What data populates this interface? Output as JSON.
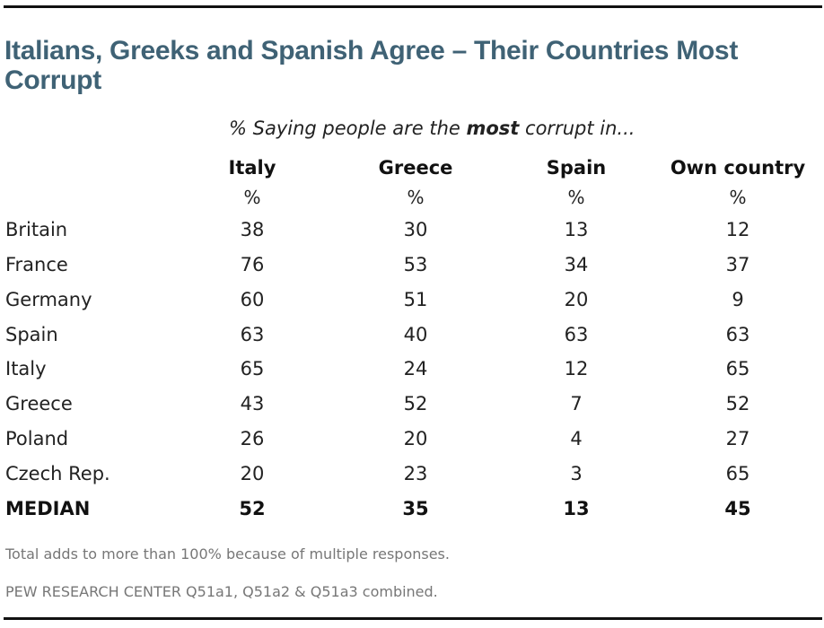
{
  "chart_data": {
    "type": "table",
    "title": "Italians, Greeks and Spanish Agree – Their Countries Most Corrupt",
    "subtitle_prefix": "% Saying people are the ",
    "subtitle_emphasis": "most",
    "subtitle_suffix": " corrupt in...",
    "columns": [
      {
        "label": "Italy",
        "unit": "%"
      },
      {
        "label": "Greece",
        "unit": "%"
      },
      {
        "label": "Spain",
        "unit": "%"
      },
      {
        "label": "Own country",
        "unit": "%"
      }
    ],
    "rows": [
      {
        "label": "Britain",
        "values": [
          "38",
          "30",
          "13",
          "12"
        ]
      },
      {
        "label": "France",
        "values": [
          "76",
          "53",
          "34",
          "37"
        ]
      },
      {
        "label": "Germany",
        "values": [
          "60",
          "51",
          "20",
          "9"
        ]
      },
      {
        "label": "Spain",
        "values": [
          "63",
          "40",
          "63",
          "63"
        ]
      },
      {
        "label": "Italy",
        "values": [
          "65",
          "24",
          "12",
          "65"
        ]
      },
      {
        "label": "Greece",
        "values": [
          "43",
          "52",
          "7",
          "52"
        ]
      },
      {
        "label": "Poland",
        "values": [
          "26",
          "20",
          "4",
          "27"
        ]
      },
      {
        "label": "Czech Rep.",
        "values": [
          "20",
          "23",
          "3",
          "65"
        ]
      }
    ],
    "summary_row": {
      "label": "MEDIAN",
      "values": [
        "52",
        "35",
        "13",
        "45"
      ]
    },
    "notes": [
      "Total adds to more than 100% because of multiple responses.",
      "PEW RESEARCH  CENTER Q51a1, Q51a2 & Q51a3 combined."
    ],
    "colors": {
      "title": "#3f6275",
      "text": "#222222",
      "note": "#777777",
      "rule": "#111111"
    }
  }
}
